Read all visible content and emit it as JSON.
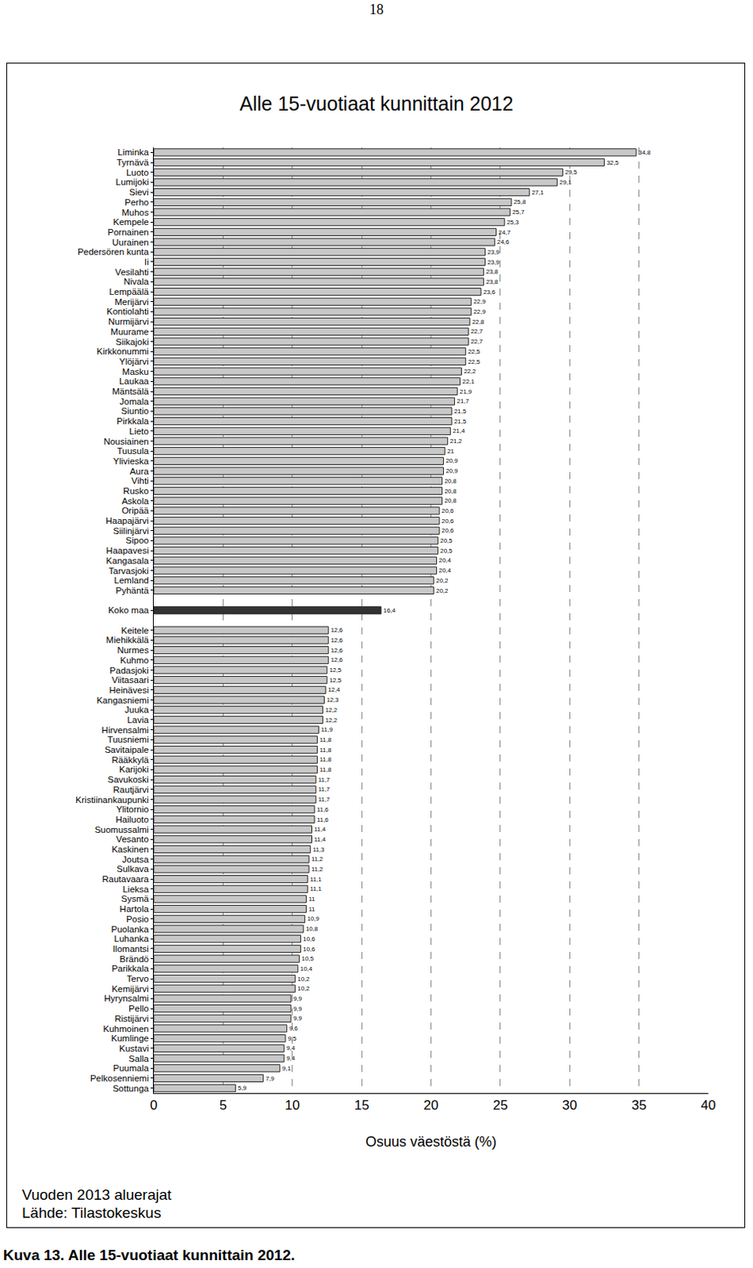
{
  "page_number": "18",
  "caption": "Kuva 13. Alle 15-vuotiaat kunnittain 2012.",
  "notes": [
    "Vuoden 2013 aluerajat",
    "Lähde: Tilastokeskus"
  ],
  "chart_data": {
    "type": "bar",
    "orientation": "horizontal",
    "title": "Alle 15-vuotiaat kunnittain 2012",
    "x_label": "Osuus väestöstä (%)",
    "categories": [
      "Liminka",
      "Tyrnävä",
      "Luoto",
      "Lumijoki",
      "Sievi",
      "Perho",
      "Muhos",
      "Kempele",
      "Pornainen",
      "Uurainen",
      "Pedersören kunta",
      "Ii",
      "Vesilahti",
      "Nivala",
      "Lempäälä",
      "Merijärvi",
      "Kontiolahti",
      "Nurmijärvi",
      "Muurame",
      "Siikajoki",
      "Kirkkonummi",
      "Ylöjärvi",
      "Masku",
      "Laukaa",
      "Mäntsälä",
      "Jomala",
      "Siuntio",
      "Pirkkala",
      "Lieto",
      "Nousiainen",
      "Tuusula",
      "Ylivieska",
      "Aura",
      "Vihti",
      "Rusko",
      "Askola",
      "Oripää",
      "Haapajärvi",
      "Siilinjärvi",
      "Sipoo",
      "Haapavesi",
      "Kangasala",
      "Tarvasjoki",
      "Lemland",
      "Pyhäntä",
      null,
      "Koko maa",
      null,
      "Keitele",
      "Miehikkälä",
      "Nurmes",
      "Kuhmo",
      "Padasjoki",
      "Viitasaari",
      "Heinävesi",
      "Kangasniemi",
      "Juuka",
      "Lavia",
      "Hirvensalmi",
      "Tuusniemi",
      "Savitaipale",
      "Rääkkylä",
      "Karijoki",
      "Savukoski",
      "Rautjärvi",
      "Kristiinankaupunki",
      "Ylitornio",
      "Hailuoto",
      "Suomussalmi",
      "Vesanto",
      "Kaskinen",
      "Joutsa",
      "Sulkava",
      "Rautavaara",
      "Lieksa",
      "Sysmä",
      "Hartola",
      "Posio",
      "Puolanka",
      "Luhanka",
      "Ilomantsi",
      "Brändö",
      "Parikkala",
      "Tervo",
      "Kemijärvi",
      "Hyrynsalmi",
      "Pello",
      "Ristijärvi",
      "Kuhmoinen",
      "Kumlinge",
      "Kustavi",
      "Salla",
      "Puumala",
      "Pelkosenniemi",
      "Sottunga"
    ],
    "values": [
      34.8,
      32.5,
      29.5,
      29.1,
      27.1,
      25.8,
      25.7,
      25.3,
      24.7,
      24.6,
      23.9,
      23.9,
      23.8,
      23.8,
      23.6,
      22.9,
      22.9,
      22.8,
      22.7,
      22.7,
      22.5,
      22.5,
      22.2,
      22.1,
      21.9,
      21.7,
      21.5,
      21.5,
      21.4,
      21.2,
      21,
      20.9,
      20.9,
      20.8,
      20.8,
      20.8,
      20.6,
      20.6,
      20.6,
      20.5,
      20.5,
      20.4,
      20.4,
      20.2,
      20.2,
      null,
      16.4,
      null,
      12.6,
      12.6,
      12.6,
      12.6,
      12.5,
      12.5,
      12.4,
      12.3,
      12.2,
      12.2,
      11.9,
      11.8,
      11.8,
      11.8,
      11.8,
      11.7,
      11.7,
      11.7,
      11.6,
      11.6,
      11.4,
      11.4,
      11.3,
      11.2,
      11.2,
      11.1,
      11.1,
      11,
      11,
      10.9,
      10.8,
      10.6,
      10.6,
      10.5,
      10.4,
      10.2,
      10.2,
      9.9,
      9.9,
      9.9,
      9.6,
      9.5,
      9.4,
      9.4,
      9.1,
      7.9,
      5.9
    ],
    "value_labels": [
      "34,8",
      "32,5",
      "29,5",
      "29,1",
      "27,1",
      "25,8",
      "25,7",
      "25,3",
      "24,7",
      "24,6",
      "23,9",
      "23,9",
      "23,8",
      "23,8",
      "23,6",
      "22,9",
      "22,9",
      "22,8",
      "22,7",
      "22,7",
      "22,5",
      "22,5",
      "22,2",
      "22,1",
      "21,9",
      "21,7",
      "21,5",
      "21,5",
      "21,4",
      "21,2",
      "21",
      "20,9",
      "20,9",
      "20,8",
      "20,8",
      "20,8",
      "20,6",
      "20,6",
      "20,6",
      "20,5",
      "20,5",
      "20,4",
      "20,4",
      "20,2",
      "20,2",
      null,
      "16,4",
      null,
      "12,6",
      "12,6",
      "12,6",
      "12,6",
      "12,5",
      "12,5",
      "12,4",
      "12,3",
      "12,2",
      "12,2",
      "11,9",
      "11,8",
      "11,8",
      "11,8",
      "11,8",
      "11,7",
      "11,7",
      "11,7",
      "11,6",
      "11,6",
      "11,4",
      "11,4",
      "11,3",
      "11,2",
      "11,2",
      "11,1",
      "11,1",
      "11",
      "11",
      "10,9",
      "10,8",
      "10,6",
      "10,6",
      "10,5",
      "10,4",
      "10,2",
      "10,2",
      "9,9",
      "9,9",
      "9,9",
      "9,6",
      "9,5",
      "9,4",
      "9,4",
      "9,1",
      "7,9",
      "5,9"
    ],
    "colors": [
      "#c8c8c8",
      "#c8c8c8",
      "#c8c8c8",
      "#c8c8c8",
      "#c8c8c8",
      "#c8c8c8",
      "#c8c8c8",
      "#c8c8c8",
      "#c8c8c8",
      "#c8c8c8",
      "#c8c8c8",
      "#c8c8c8",
      "#c8c8c8",
      "#c8c8c8",
      "#c8c8c8",
      "#c8c8c8",
      "#c8c8c8",
      "#c8c8c8",
      "#c8c8c8",
      "#c8c8c8",
      "#c8c8c8",
      "#c8c8c8",
      "#c8c8c8",
      "#c8c8c8",
      "#c8c8c8",
      "#c8c8c8",
      "#c8c8c8",
      "#c8c8c8",
      "#c8c8c8",
      "#c8c8c8",
      "#c8c8c8",
      "#c8c8c8",
      "#c8c8c8",
      "#c8c8c8",
      "#c8c8c8",
      "#c8c8c8",
      "#c8c8c8",
      "#c8c8c8",
      "#c8c8c8",
      "#c8c8c8",
      "#c8c8c8",
      "#c8c8c8",
      "#c8c8c8",
      "#c8c8c8",
      "#c8c8c8",
      "#c8c8c8",
      "#333333",
      "#c8c8c8",
      "#c8c8c8",
      "#c8c8c8",
      "#c8c8c8",
      "#c8c8c8",
      "#c8c8c8",
      "#c8c8c8",
      "#c8c8c8",
      "#c8c8c8",
      "#c8c8c8",
      "#c8c8c8",
      "#c8c8c8",
      "#c8c8c8",
      "#c8c8c8",
      "#c8c8c8",
      "#c8c8c8",
      "#c8c8c8",
      "#c8c8c8",
      "#c8c8c8",
      "#c8c8c8",
      "#c8c8c8",
      "#c8c8c8",
      "#c8c8c8",
      "#c8c8c8",
      "#c8c8c8",
      "#c8c8c8",
      "#c8c8c8",
      "#c8c8c8",
      "#c8c8c8",
      "#c8c8c8",
      "#c8c8c8",
      "#c8c8c8",
      "#c8c8c8",
      "#c8c8c8",
      "#c8c8c8",
      "#c8c8c8",
      "#c8c8c8",
      "#c8c8c8",
      "#c8c8c8",
      "#c8c8c8",
      "#c8c8c8",
      "#c8c8c8",
      "#c8c8c8",
      "#c8c8c8",
      "#c8c8c8",
      "#c8c8c8",
      "#c8c8c8",
      "#c8c8c8"
    ],
    "data_labels": true,
    "xlim": [
      0,
      40
    ],
    "xticks": [
      0,
      5,
      10,
      15,
      20,
      25,
      30,
      35,
      40
    ],
    "grid": true
  }
}
